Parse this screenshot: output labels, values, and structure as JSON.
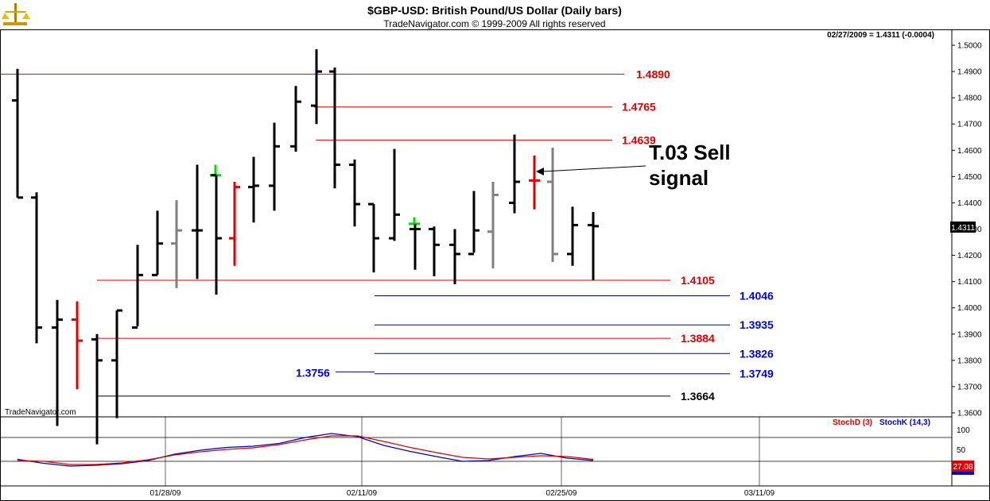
{
  "chart_data": {
    "type": "bar",
    "title": "$GBP-USD:  British Pound/US Dollar  (Daily bars)",
    "subtitle": "TradeNavigator.com © 1999-2009 All rights reserved",
    "last_quote": "02/27/2009 = 1.4311 (-0.0004)",
    "watermark": "TradeNavigator.com",
    "price_axis": {
      "ylim": [
        1.356,
        1.505
      ],
      "ticks": [
        "1.5000",
        "1.4900",
        "1.4800",
        "1.4700",
        "1.4600",
        "1.4500",
        "1.4400",
        "1.4300",
        "1.4200",
        "1.4100",
        "1.4000",
        "1.3900",
        "1.3800",
        "1.3700",
        "1.3600"
      ],
      "current_price_label": "1.4311"
    },
    "date_labels": [
      "01/28/09",
      "02/11/09",
      "02/25/09",
      "03/11/09"
    ],
    "bars": [
      {
        "date": "01/15/09",
        "open": 1.479,
        "high": 1.491,
        "low": 1.442,
        "close": 1.442,
        "color": "black"
      },
      {
        "date": "01/16/09",
        "open": 1.442,
        "high": 1.444,
        "low": 1.3865,
        "close": 1.3925,
        "color": "black"
      },
      {
        "date": "01/19/09",
        "open": 1.3925,
        "high": 1.403,
        "low": 1.355,
        "close": 1.3955,
        "color": "black"
      },
      {
        "date": "01/20/09",
        "open": 1.3955,
        "high": 1.4025,
        "low": 1.369,
        "close": 1.3875,
        "color": "red"
      },
      {
        "date": "01/21/09",
        "open": 1.388,
        "high": 1.39,
        "low": 1.348,
        "close": 1.38,
        "color": "black"
      },
      {
        "date": "01/22/09",
        "open": 1.38,
        "high": 1.399,
        "low": 1.358,
        "close": 1.399,
        "color": "black"
      },
      {
        "date": "01/23/09",
        "open": 1.3925,
        "high": 1.424,
        "low": 1.393,
        "close": 1.4125,
        "color": "black"
      },
      {
        "date": "01/26/09",
        "open": 1.4125,
        "high": 1.437,
        "low": 1.4125,
        "close": 1.4245,
        "color": "black"
      },
      {
        "date": "01/27/09",
        "open": 1.4245,
        "high": 1.441,
        "low": 1.4075,
        "close": 1.4295,
        "color": "gray"
      },
      {
        "date": "01/28/09",
        "open": 1.4295,
        "high": 1.4545,
        "low": 1.411,
        "close": 1.4295,
        "color": "black"
      },
      {
        "date": "01/29/09",
        "open": 1.4505,
        "high": 1.4545,
        "low": 1.45,
        "close": 1.4505,
        "color": "green"
      },
      {
        "date": "01/29/09b",
        "open": 1.4505,
        "high": 1.4505,
        "low": 1.405,
        "close": 1.4265,
        "color": "black"
      },
      {
        "date": "01/30/09",
        "open": 1.4265,
        "high": 1.448,
        "low": 1.416,
        "close": 1.446,
        "color": "red"
      },
      {
        "date": "02/02/09",
        "open": 1.446,
        "high": 1.4575,
        "low": 1.4325,
        "close": 1.4465,
        "color": "black"
      },
      {
        "date": "02/03/09",
        "open": 1.4465,
        "high": 1.4705,
        "low": 1.437,
        "close": 1.4615,
        "color": "black"
      },
      {
        "date": "02/04/09",
        "open": 1.4615,
        "high": 1.4845,
        "low": 1.4595,
        "close": 1.4785,
        "color": "black"
      },
      {
        "date": "02/05/09",
        "open": 1.477,
        "high": 1.4985,
        "low": 1.47,
        "close": 1.49,
        "color": "black"
      },
      {
        "date": "02/06/09",
        "open": 1.49,
        "high": 1.4915,
        "low": 1.4455,
        "close": 1.4545,
        "color": "black"
      },
      {
        "date": "02/09/09",
        "open": 1.4545,
        "high": 1.4565,
        "low": 1.431,
        "close": 1.4395,
        "color": "black"
      },
      {
        "date": "02/10/09",
        "open": 1.4395,
        "high": 1.4395,
        "low": 1.4135,
        "close": 1.4265,
        "color": "black"
      },
      {
        "date": "02/11/09",
        "open": 1.4265,
        "high": 1.4605,
        "low": 1.4255,
        "close": 1.4355,
        "color": "black"
      },
      {
        "date": "02/12/09",
        "open": 1.432,
        "high": 1.4345,
        "low": 1.4315,
        "close": 1.432,
        "color": "green"
      },
      {
        "date": "02/12/09b",
        "open": 1.43,
        "high": 1.432,
        "low": 1.4145,
        "close": 1.43,
        "color": "black"
      },
      {
        "date": "02/13/09",
        "open": 1.43,
        "high": 1.431,
        "low": 1.412,
        "close": 1.424,
        "color": "black"
      },
      {
        "date": "02/16/09",
        "open": 1.424,
        "high": 1.43,
        "low": 1.409,
        "close": 1.4205,
        "color": "black"
      },
      {
        "date": "02/17/09",
        "open": 1.4205,
        "high": 1.4445,
        "low": 1.421,
        "close": 1.4295,
        "color": "black"
      },
      {
        "date": "02/18/09",
        "open": 1.429,
        "high": 1.448,
        "low": 1.415,
        "close": 1.443,
        "color": "gray"
      },
      {
        "date": "02/19/09",
        "open": 1.44,
        "high": 1.466,
        "low": 1.436,
        "close": 1.448,
        "color": "black"
      },
      {
        "date": "02/20/09",
        "open": 1.4485,
        "high": 1.458,
        "low": 1.4375,
        "close": 1.4485,
        "color": "red"
      },
      {
        "date": "02/23/09",
        "open": 1.448,
        "high": 1.461,
        "low": 1.4175,
        "close": 1.4205,
        "color": "gray"
      },
      {
        "date": "02/24/09",
        "open": 1.4205,
        "high": 1.4385,
        "low": 1.416,
        "close": 1.4315,
        "color": "black"
      },
      {
        "date": "02/25/09",
        "open": 1.4315,
        "high": 1.4365,
        "low": 1.4105,
        "close": 1.4311,
        "color": "black"
      }
    ],
    "levels": [
      {
        "value": 1.489,
        "label": "1.4890",
        "color": "#e00000",
        "label_color": "#e00000"
      },
      {
        "value": 1.4765,
        "label": "1.4765",
        "color": "#e00000",
        "label_color": "#e00000"
      },
      {
        "value": 1.4639,
        "label": "1.4639",
        "color": "#e00000",
        "label_color": "#e00000"
      },
      {
        "value": 1.4105,
        "label": "1.4105",
        "color": "#e00000",
        "label_color": "#e00000"
      },
      {
        "value": 1.4046,
        "label": "1.4046",
        "color": "#0000a0",
        "label_color": "#0000e0"
      },
      {
        "value": 1.3935,
        "label": "1.3935",
        "color": "#0000a0",
        "label_color": "#0000e0"
      },
      {
        "value": 1.3884,
        "label": "1.3884",
        "color": "#e00000",
        "label_color": "#e00000"
      },
      {
        "value": 1.3826,
        "label": "1.3826",
        "color": "#0000a0",
        "label_color": "#0000e0"
      },
      {
        "value": 1.3749,
        "label": "1.3749",
        "color": "#0000a0",
        "label_color": "#0000e0"
      },
      {
        "value": 1.3756,
        "label": "1.3756",
        "color": "#0000a0",
        "label_color": "#0000e0"
      },
      {
        "value": 1.3664,
        "label": "1.3664",
        "color": "#000000",
        "label_color": "#000000"
      }
    ],
    "annotation": {
      "line1": "T.03 Sell",
      "line2": "signal",
      "points_to_price": 1.45
    },
    "stochastic": {
      "legend_d": "StochD (3)",
      "legend_k": "StochK (14,3)",
      "ylim": [
        0,
        100
      ],
      "ticks": [
        "100",
        "50",
        "0"
      ],
      "current_value": "27.08",
      "stochK": [
        25,
        15,
        8,
        10,
        14,
        22,
        38,
        48,
        55,
        58,
        65,
        80,
        90,
        82,
        60,
        45,
        32,
        20,
        22,
        32,
        40,
        28,
        22
      ],
      "stochD": [
        22,
        20,
        12,
        12,
        16,
        24,
        36,
        44,
        50,
        54,
        62,
        74,
        84,
        84,
        70,
        55,
        42,
        30,
        26,
        30,
        34,
        32,
        25
      ]
    }
  }
}
